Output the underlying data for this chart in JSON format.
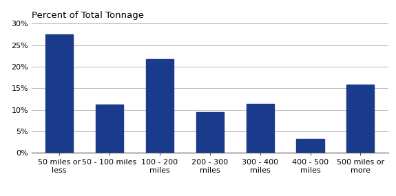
{
  "categories": [
    "50 miles or\nless",
    "50 - 100 miles",
    "100 - 200\nmiles",
    "200 - 300\nmiles",
    "300 - 400\nmiles",
    "400 - 500\nmiles",
    "500 miles or\nmore"
  ],
  "values": [
    0.275,
    0.112,
    0.217,
    0.094,
    0.114,
    0.033,
    0.159
  ],
  "bar_color": "#1a3a8c",
  "title": "Percent of Total Tonnage",
  "ylim": [
    0,
    0.3
  ],
  "yticks": [
    0.0,
    0.05,
    0.1,
    0.15,
    0.2,
    0.25,
    0.3
  ],
  "ytick_labels": [
    "0%",
    "5%",
    "10%",
    "15%",
    "20%",
    "25%",
    "30%"
  ],
  "background_color": "#ffffff",
  "title_fontsize": 9.5,
  "tick_fontsize": 8,
  "bar_width": 0.55
}
